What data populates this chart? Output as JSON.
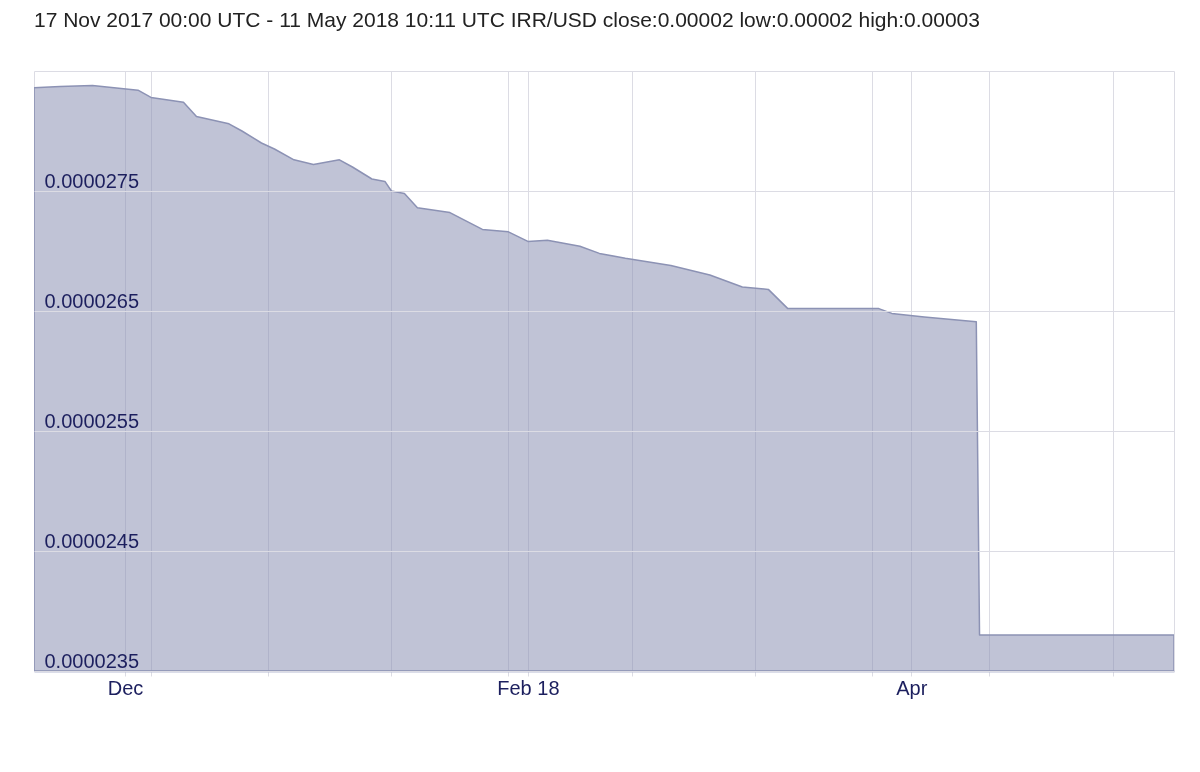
{
  "chart_data": {
    "type": "area",
    "title": "17 Nov 2017 00:00 UTC - 11 May 2018 10:11 UTC   IRR/USD close:0.00002 low:0.00002 high:0.00003",
    "series": [
      {
        "color": "#8c92b4",
        "x": [
          "2017-11-17",
          "2017-11-21",
          "2017-11-26",
          "2017-12-03",
          "2017-12-05",
          "2017-12-10",
          "2017-12-12",
          "2017-12-17",
          "2017-12-19",
          "2017-12-22",
          "2017-12-24",
          "2017-12-27",
          "2017-12-30",
          "2018-01-03",
          "2018-01-05",
          "2018-01-08",
          "2018-01-10",
          "2018-01-11",
          "2018-01-13",
          "2018-01-15",
          "2018-01-20",
          "2018-01-25",
          "2018-01-29",
          "2018-02-01",
          "2018-02-04",
          "2018-02-09",
          "2018-02-12",
          "2018-02-16",
          "2018-02-23",
          "2018-03-01",
          "2018-03-06",
          "2018-03-10",
          "2018-03-13",
          "2018-03-27",
          "2018-03-29",
          "2018-04-03",
          "2018-04-11",
          "2018-04-11T12:00",
          "2018-05-11T10:11"
        ],
        "values": [
          2.836e-05,
          2.837e-05,
          2.838e-05,
          2.834e-05,
          2.828e-05,
          2.824e-05,
          2.812e-05,
          2.806e-05,
          2.8e-05,
          2.79e-05,
          2.785e-05,
          2.776e-05,
          2.772e-05,
          2.776e-05,
          2.77e-05,
          2.76e-05,
          2.758e-05,
          2.75e-05,
          2.748e-05,
          2.736e-05,
          2.732e-05,
          2.718e-05,
          2.716e-05,
          2.708e-05,
          2.709e-05,
          2.704e-05,
          2.698e-05,
          2.694e-05,
          2.688e-05,
          2.68e-05,
          2.67e-05,
          2.668e-05,
          2.652e-05,
          2.652e-05,
          2.648e-05,
          2.645e-05,
          2.641e-05,
          2.38e-05,
          2.38e-05
        ]
      }
    ],
    "xlim": [
      "2017-11-17",
      "2018-05-11T10:11"
    ],
    "xticks": [
      {
        "value": "2017-12-01",
        "label": "Dec"
      },
      {
        "value": "2018-02-01",
        "label": "Feb 18"
      },
      {
        "value": "2018-04-01",
        "label": "Apr"
      },
      {
        "value": "2017-12-05",
        "label": null
      },
      {
        "value": "2017-12-23",
        "label": null
      },
      {
        "value": "2018-01-11",
        "label": null
      },
      {
        "value": "2018-01-29",
        "label": null
      },
      {
        "value": "2018-02-17",
        "label": null
      },
      {
        "value": "2018-03-08",
        "label": null
      },
      {
        "value": "2018-03-26",
        "label": null
      },
      {
        "value": "2018-04-13",
        "label": null
      },
      {
        "value": "2018-05-02",
        "label": null
      }
    ],
    "ylim": [
      2.35e-05,
      2.85e-05
    ],
    "yticks": [
      {
        "value": 2.35e-05,
        "label": "0.0000235"
      },
      {
        "value": 2.45e-05,
        "label": "0.0000245"
      },
      {
        "value": 2.55e-05,
        "label": "0.0000255"
      },
      {
        "value": 2.65e-05,
        "label": "0.0000265"
      },
      {
        "value": 2.75e-05,
        "label": "0.0000275"
      }
    ],
    "grid": true
  }
}
